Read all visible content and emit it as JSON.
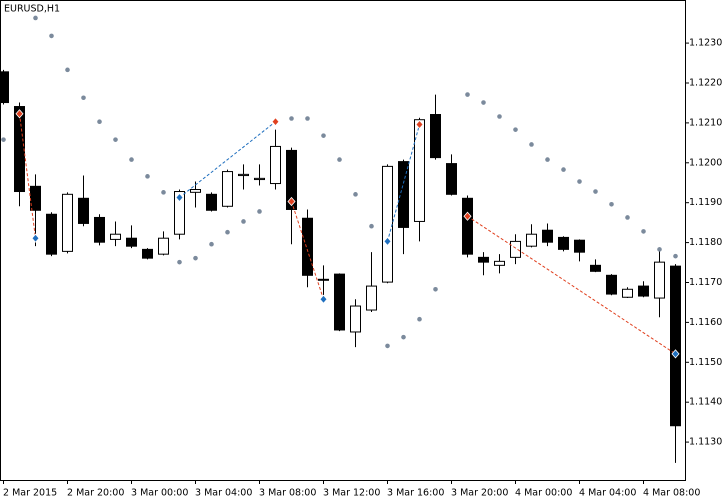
{
  "chart_data": {
    "type": "candlestick",
    "title": "EURUSD,H1",
    "categories": [
      "2 Mar 2015",
      null,
      null,
      null,
      "2 Mar 20:00",
      null,
      null,
      null,
      "3 Mar 00:00",
      null,
      null,
      null,
      "3 Mar 04:00",
      null,
      null,
      null,
      "3 Mar 08:00",
      null,
      null,
      null,
      "3 Mar 12:00",
      null,
      null,
      null,
      "3 Mar 16:00",
      null,
      null,
      null,
      "3 Mar 20:00",
      null,
      null,
      null,
      "4 Mar 00:00",
      null,
      null,
      null,
      "4 Mar 04:00",
      null,
      null,
      null,
      "4 Mar 08:00",
      null,
      null
    ],
    "open": [
      1.12228,
      1.12141,
      1.11941,
      1.11871,
      1.11778,
      1.11911,
      1.11863,
      1.11808,
      1.11811,
      1.11783,
      1.11771,
      1.11821,
      1.11926,
      1.11921,
      1.11891,
      1.11968,
      1.11958,
      1.11948,
      1.12031,
      1.11861,
      1.11708,
      1.11721,
      1.11576,
      1.11631,
      1.11701,
      1.12003,
      1.11853,
      1.12121,
      1.11998,
      1.11911,
      1.11763,
      1.11743,
      1.11763,
      1.11791,
      1.11831,
      1.11813,
      1.11806,
      1.11743,
      1.11718,
      1.11663,
      1.11691,
      1.11661,
      1.11741
    ],
    "high": [
      1.12233,
      1.12151,
      1.11971,
      1.11876,
      1.11926,
      1.11968,
      1.11871,
      1.11853,
      1.11843,
      1.11786,
      1.11828,
      1.11933,
      1.11953,
      1.11926,
      1.11983,
      1.11996,
      1.11996,
      1.12083,
      1.12038,
      1.11883,
      1.11743,
      1.11723,
      1.11658,
      1.11776,
      1.11996,
      1.12008,
      1.12113,
      1.12171,
      1.12021,
      1.11918,
      1.11776,
      1.11771,
      1.11821,
      1.11846,
      1.11848,
      1.11816,
      1.11808,
      1.11758,
      1.11721,
      1.11688,
      1.11703,
      1.11788,
      1.11746
    ],
    "low": [
      1.12146,
      1.11891,
      1.11791,
      1.11766,
      1.11773,
      1.11841,
      1.11793,
      1.11791,
      1.11786,
      1.11758,
      1.11768,
      1.11808,
      1.11888,
      1.11878,
      1.11888,
      1.11933,
      1.11943,
      1.11933,
      1.11796,
      1.11688,
      1.11658,
      1.11578,
      1.11538,
      1.11626,
      1.11698,
      1.11771,
      1.11803,
      1.12008,
      1.11918,
      1.11763,
      1.11718,
      1.11723,
      1.11746,
      1.11788,
      1.11791,
      1.11778,
      1.11753,
      1.11726,
      1.11668,
      1.11661,
      1.11663,
      1.11613,
      1.11248
    ],
    "close": [
      1.12151,
      1.11928,
      1.11881,
      1.11771,
      1.11921,
      1.11848,
      1.11801,
      1.11821,
      1.11791,
      1.11761,
      1.11811,
      1.11928,
      1.11933,
      1.11881,
      1.11978,
      1.11971,
      1.11961,
      1.12041,
      1.11883,
      1.11718,
      1.11706,
      1.11581,
      1.11641,
      1.11691,
      1.11991,
      1.11838,
      1.12108,
      1.12013,
      1.11921,
      1.11771,
      1.11751,
      1.11753,
      1.11803,
      1.11821,
      1.11801,
      1.11783,
      1.11776,
      1.11728,
      1.11671,
      1.11683,
      1.11666,
      1.11751,
      1.11341
    ],
    "up_color": "#ffffff",
    "down_color": "#000000",
    "sar": {
      "color": "#7b8a9c",
      "values": [
        1.12058,
        null,
        1.12363,
        1.12318,
        1.12233,
        1.12163,
        1.12103,
        1.12058,
        1.12008,
        1.11966,
        1.11926,
        1.11751,
        1.11761,
        1.11796,
        1.11826,
        1.11853,
        1.11878,
        null,
        1.12111,
        1.12111,
        1.12068,
        1.12008,
        1.11921,
        1.11841,
        1.11541,
        1.11563,
        1.11608,
        1.11683,
        null,
        1.12171,
        1.12151,
        1.12116,
        1.12083,
        1.12046,
        1.12008,
        1.11983,
        1.11953,
        1.11928,
        1.11896,
        1.11863,
        1.11828,
        1.11783,
        1.11766
      ]
    },
    "trades": [
      {
        "x": [
          1,
          2
        ],
        "values": [
          1.12123,
          1.11811
        ],
        "colors": [
          "#e0401f",
          "#1f6fbf"
        ]
      },
      {
        "x": [
          11,
          17
        ],
        "values": [
          1.11913,
          1.12103
        ],
        "colors": [
          "#1f6fbf",
          "#e0401f"
        ]
      },
      {
        "x": [
          18,
          20
        ],
        "values": [
          1.11903,
          1.11658
        ],
        "colors": [
          "#e0401f",
          "#1f6fbf"
        ]
      },
      {
        "x": [
          24,
          26
        ],
        "values": [
          1.11803,
          1.12096
        ],
        "colors": [
          "#1f6fbf",
          "#e0401f"
        ]
      },
      {
        "x": [
          29,
          42
        ],
        "values": [
          1.11866,
          1.11521
        ],
        "colors": [
          "#e0401f",
          "#1f6fbf"
        ]
      }
    ],
    "ylim": [
      1.11205,
      1.12408
    ],
    "yticks": [
      {
        "value": 1.113,
        "label": "1.1130"
      },
      {
        "value": 1.114,
        "label": "1.1140"
      },
      {
        "value": 1.115,
        "label": "1.1150"
      },
      {
        "value": 1.116,
        "label": "1.1160"
      },
      {
        "value": 1.117,
        "label": "1.1170"
      },
      {
        "value": 1.118,
        "label": "1.1180"
      },
      {
        "value": 1.119,
        "label": "1.1190"
      },
      {
        "value": 1.12,
        "label": "1.1200"
      },
      {
        "value": 1.121,
        "label": "1.1210"
      },
      {
        "value": 1.122,
        "label": "1.1220"
      },
      {
        "value": 1.123,
        "label": "1.1230"
      }
    ]
  }
}
